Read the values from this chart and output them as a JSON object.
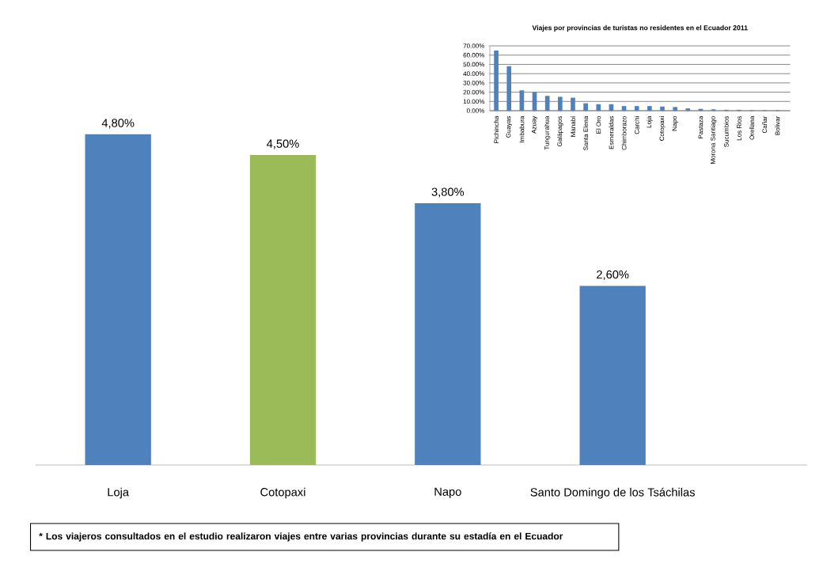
{
  "chart_data": [
    {
      "type": "bar",
      "categories": [
        "Loja",
        "Cotopaxi",
        "Napo",
        "Santo Domingo de los Tsáchilas"
      ],
      "values": [
        4.8,
        4.5,
        3.8,
        2.6
      ],
      "colors": [
        "#4f81bd",
        "#9bbb59",
        "#4f81bd",
        "#4f81bd"
      ],
      "value_labels": [
        "4,80%",
        "4,50%",
        "3,80%",
        "2,60%"
      ],
      "annotations": [
        "* Los viajeros consultados en el estudio  realizaron viajes entre varias provincias durante su estadía en el Ecuador"
      ]
    },
    {
      "type": "bar",
      "title": "Viajes por provincias de turistas no residentes en el Ecuador 2011",
      "categories": [
        "Pichincha",
        "Guayas",
        "Imbabura",
        "Azuay",
        "Tungurahua",
        "Galápagos",
        "Manabí",
        "Santa Elena",
        "El Oro",
        "Esmeraldas",
        "Chimborazo",
        "Carchi",
        "Loja",
        "Cotopaxi",
        "Napo",
        null,
        "Pastaza",
        "Morona Santiago",
        "Sucumbios",
        "Los Rios",
        "Orellana",
        "Cañar",
        "Bolivar"
      ],
      "values": [
        65,
        48,
        22,
        20,
        16,
        15,
        14,
        8,
        7,
        7,
        5,
        5,
        5,
        4.5,
        4,
        2.5,
        2,
        1.5,
        1,
        1,
        0.5,
        0.5,
        0.5
      ],
      "color": "#4f81bd",
      "ylim": [
        0,
        70
      ],
      "yticks": [
        {
          "value": 0,
          "label": "0.00%"
        },
        {
          "value": 10,
          "label": "10.00%"
        },
        {
          "value": 20,
          "label": "20.00%"
        },
        {
          "value": 30,
          "label": "30.00%"
        },
        {
          "value": 40,
          "label": "40.00%"
        },
        {
          "value": 50,
          "label": "50.00%"
        },
        {
          "value": 60,
          "label": "60.00%"
        },
        {
          "value": 70,
          "label": "70.00%"
        }
      ],
      "grid": "y"
    }
  ]
}
